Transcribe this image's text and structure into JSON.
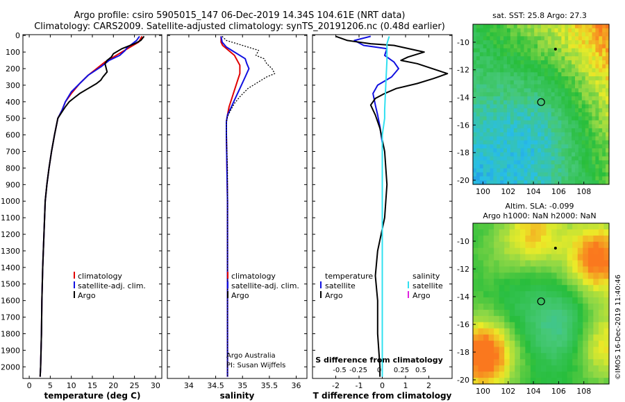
{
  "header": {
    "line1": "Argo profile: csiro 5905015_147 06-Dec-2019 14.34S 104.61E (NRT data)",
    "line2": "Climatology: CARS2009. Satellite-adjusted climatology: synTS_20191206.nc (0.48d earlier)"
  },
  "colors": {
    "climatology": "#e00000",
    "satellite": "#1010e0",
    "argo": "#000000",
    "salinity_sat": "#30e0f0",
    "salinity_argo": "#e020e0"
  },
  "depth_axis": {
    "ticks": [
      0,
      100,
      200,
      300,
      400,
      500,
      600,
      700,
      800,
      900,
      1000,
      1100,
      1200,
      1300,
      1400,
      1500,
      1600,
      1700,
      1800,
      1900,
      2000
    ]
  },
  "chart_data": [
    {
      "type": "line",
      "id": "temperature",
      "xlabel": "temperature (deg C)",
      "xlim": [
        -1.5,
        31.5
      ],
      "xticks": [
        0,
        5,
        10,
        15,
        20,
        25,
        30
      ],
      "ylim": [
        2070,
        -5
      ],
      "legend": [
        "climatology",
        "satellite-adj. clim.",
        "Argo"
      ],
      "series": [
        {
          "name": "climatology",
          "x": [
            26.8,
            26,
            24,
            22,
            20,
            18,
            16,
            14,
            12,
            10,
            8.6,
            7.8,
            6.8,
            6,
            5.3,
            4.7,
            4.2,
            3.8,
            3.5,
            3.2,
            3,
            2.9,
            2.7,
            2.6
          ],
          "y": [
            5,
            40,
            70,
            100,
            130,
            160,
            200,
            240,
            290,
            350,
            400,
            450,
            500,
            600,
            700,
            800,
            900,
            1000,
            1200,
            1400,
            1600,
            1800,
            2000,
            2060
          ]
        },
        {
          "name": "satellite-adj. clim.",
          "x": [
            26.2,
            25.5,
            24,
            23.2,
            22.8,
            21.5,
            19,
            18,
            17,
            14,
            12,
            10,
            8.6,
            7.8,
            6.8,
            6,
            5.3,
            4.7,
            4.2,
            3.8,
            3.5,
            3.2,
            3,
            2.9,
            2.7,
            2.6
          ],
          "y": [
            5,
            30,
            60,
            75,
            90,
            120,
            150,
            170,
            190,
            240,
            290,
            340,
            400,
            450,
            500,
            600,
            700,
            800,
            900,
            1000,
            1200,
            1400,
            1600,
            1800,
            2000,
            2060
          ]
        },
        {
          "name": "Argo",
          "x": [
            27.3,
            26.5,
            25,
            22,
            20,
            19.5,
            18.5,
            18,
            18.5,
            17.5,
            17,
            16,
            14,
            12,
            10.5,
            9.5,
            8.6,
            7.8,
            6.8,
            6,
            5.3,
            4.7,
            4.2,
            3.8,
            3.5,
            3.2,
            3,
            2.9,
            2.7,
            2.6
          ],
          "y": [
            5,
            30,
            50,
            80,
            110,
            130,
            150,
            170,
            220,
            250,
            270,
            290,
            320,
            350,
            380,
            400,
            430,
            460,
            500,
            600,
            700,
            800,
            900,
            1000,
            1200,
            1400,
            1600,
            1800,
            2000,
            2060
          ]
        }
      ]
    },
    {
      "type": "line",
      "id": "salinity",
      "xlabel": "salinity",
      "xlim": [
        33.6,
        36.2
      ],
      "xticks": [
        34,
        34.5,
        35,
        35.5,
        36
      ],
      "ylim": [
        2070,
        -5
      ],
      "legend": [
        "climatology",
        "satellite-adj. clim.",
        "Argo"
      ],
      "annotations": [
        "Argo Australia",
        "PI: Susan Wijffels"
      ],
      "series": [
        {
          "name": "climatology",
          "x": [
            34.6,
            34.6,
            34.63,
            34.85,
            34.95,
            34.95,
            34.9,
            34.85,
            34.8,
            34.75,
            34.72,
            34.7,
            34.7,
            34.71,
            34.72,
            34.72,
            34.72,
            34.72,
            34.72,
            34.72
          ],
          "y": [
            5,
            40,
            60,
            120,
            180,
            230,
            280,
            330,
            380,
            430,
            480,
            520,
            600,
            800,
            1000,
            1200,
            1400,
            1600,
            1800,
            2060
          ]
        },
        {
          "name": "satellite-adj. clim.",
          "x": [
            34.6,
            34.62,
            34.7,
            34.85,
            35.05,
            35.08,
            35.12,
            35.05,
            34.95,
            34.85,
            34.78,
            34.72,
            34.7,
            34.7,
            34.71,
            34.72,
            34.72,
            34.72,
            34.72,
            34.72,
            34.72
          ],
          "y": [
            5,
            40,
            70,
            100,
            140,
            170,
            200,
            250,
            320,
            390,
            440,
            480,
            520,
            600,
            800,
            1000,
            1200,
            1400,
            1600,
            1800,
            2060
          ]
        },
        {
          "name": "Argo",
          "dashed": true,
          "x": [
            34.62,
            34.7,
            34.9,
            35.1,
            35.3,
            35.25,
            35.4,
            35.45,
            35.55,
            35.6,
            35.45,
            35.3,
            35.1,
            34.95,
            34.85,
            34.78,
            34.72,
            34.7,
            34.7,
            34.72,
            34.72,
            34.72,
            34.72,
            34.72,
            34.72
          ],
          "y": [
            5,
            30,
            50,
            70,
            90,
            120,
            140,
            170,
            200,
            230,
            250,
            280,
            320,
            370,
            410,
            450,
            490,
            520,
            600,
            800,
            1000,
            1200,
            1400,
            1600,
            2060
          ]
        }
      ]
    },
    {
      "type": "line",
      "id": "difference",
      "xlabel": "T difference from climatology",
      "xlim": [
        -3,
        3
      ],
      "xticks": [
        -2,
        -1,
        0,
        1,
        2
      ],
      "top_axis_label": "S difference from climatology",
      "top_ticks": [
        "-0.5",
        "-0.25",
        "0",
        "0.25",
        "0.5"
      ],
      "ylim": [
        2070,
        -5
      ],
      "legend_temperature": {
        "title": "temperature",
        "items": [
          "satellite",
          "Argo"
        ]
      },
      "legend_salinity": {
        "title": "salinity",
        "items": [
          "satellite",
          "Argo"
        ]
      },
      "series": [
        {
          "name": "temperature satellite",
          "x": [
            -0.5,
            -1.2,
            -0.8,
            0.2,
            0.1,
            0.5,
            0.7,
            0.4,
            -0.2,
            -0.4,
            -0.3,
            -0.2,
            -0.1,
            0,
            0,
            0,
            0,
            0,
            0
          ],
          "y": [
            5,
            30,
            60,
            80,
            120,
            160,
            200,
            250,
            300,
            350,
            420,
            480,
            550,
            650,
            800,
            1000,
            1300,
            1700,
            2060
          ]
        },
        {
          "name": "temperature Argo",
          "x": [
            -2,
            -1.5,
            -0.5,
            0.5,
            1.8,
            1.1,
            0.8,
            1.5,
            2.8,
            2.2,
            1.5,
            0.6,
            0.1,
            -0.3,
            -0.5,
            -0.3,
            -0.1,
            0.1,
            0.2,
            0.1,
            -0.2,
            -0.3,
            -0.2,
            -0.2,
            -0.1,
            -0.1
          ],
          "y": [
            5,
            30,
            50,
            60,
            100,
            130,
            150,
            170,
            230,
            260,
            290,
            320,
            350,
            380,
            420,
            480,
            560,
            700,
            900,
            1100,
            1300,
            1450,
            1600,
            1800,
            2000,
            2060
          ]
        },
        {
          "name": "salinity satellite",
          "x": [
            0.3,
            0.2,
            0.2,
            0.15,
            0.1,
            0.1,
            0,
            0,
            0,
            0,
            0,
            0
          ],
          "y": [
            5,
            50,
            150,
            300,
            450,
            500,
            600,
            800,
            1000,
            1300,
            1700,
            2060
          ]
        }
      ]
    }
  ],
  "maps": [
    {
      "id": "sst",
      "title": "sat. SST: 25.8 Argo: 27.3",
      "xticks": [
        100,
        102,
        104,
        106,
        108
      ],
      "yticks": [
        -10,
        -12,
        -14,
        -16,
        -18,
        -20
      ],
      "xlim": [
        99.2,
        110
      ],
      "ylim": [
        -20.3,
        -8.7
      ],
      "float": {
        "lon": 104.61,
        "lat": -14.34
      },
      "marker": {
        "lon": 105.75,
        "lat": -10.5
      }
    },
    {
      "id": "sla",
      "title1": "Altim. SLA: -0.099",
      "title2": "Argo h1000: NaN h2000: NaN",
      "xticks": [
        100,
        102,
        104,
        106,
        108
      ],
      "yticks": [
        -10,
        -12,
        -14,
        -16,
        -18,
        -20
      ],
      "xlim": [
        99.2,
        110
      ],
      "ylim": [
        -20.3,
        -8.7
      ],
      "float": {
        "lon": 104.61,
        "lat": -14.34
      },
      "marker": {
        "lon": 105.75,
        "lat": -10.5
      }
    }
  ],
  "credit": "©IMOS 16-Dec-2019 11:40:46"
}
